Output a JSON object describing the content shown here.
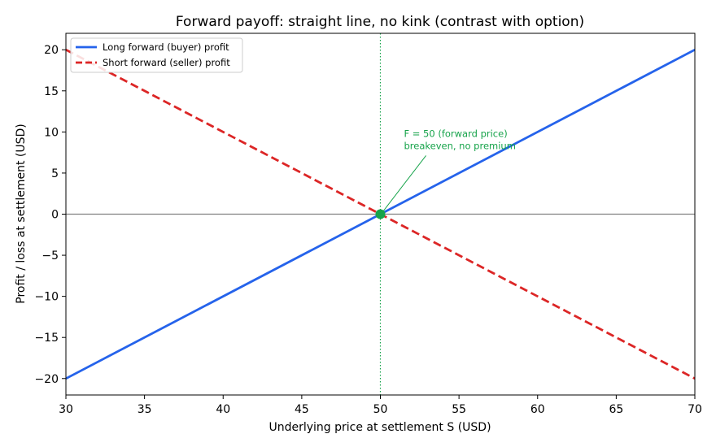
{
  "chart_data": {
    "type": "line",
    "title": "Forward payoff: straight line, no kink (contrast with option)",
    "xlabel": "Underlying price at settlement S (USD)",
    "ylabel": "Profit / loss at settlement (USD)",
    "xlim": [
      30,
      70
    ],
    "ylim": [
      -22,
      22
    ],
    "xticks": [
      30,
      35,
      40,
      45,
      50,
      55,
      60,
      65,
      70
    ],
    "yticks": [
      -20,
      -15,
      -10,
      -5,
      0,
      5,
      10,
      15,
      20
    ],
    "xtick_labels": [
      "30",
      "35",
      "40",
      "45",
      "50",
      "55",
      "60",
      "65",
      "70"
    ],
    "ytick_labels": [
      "−20",
      "−15",
      "−10",
      "−5",
      "0",
      "5",
      "10",
      "15",
      "20"
    ],
    "grid": false,
    "legend_position": "top-left",
    "series": [
      {
        "name": "Long forward (buyer) profit",
        "style": "solid",
        "color": "#2563eb",
        "x": [
          30,
          70
        ],
        "y": [
          -20,
          20
        ]
      },
      {
        "name": "Short forward (seller) profit",
        "style": "dashed",
        "color": "#dc2626",
        "x": [
          30,
          70
        ],
        "y": [
          20,
          -20
        ]
      }
    ],
    "zero_line": {
      "y": 0,
      "color": "#808080"
    },
    "reference_line": {
      "x": 50,
      "style": "dotted",
      "color": "#16a34a"
    },
    "marker": {
      "x": 50,
      "y": 0,
      "color": "#16a34a"
    },
    "annotation": {
      "lines": [
        "F = 50 (forward price)",
        "breakeven, no premium"
      ],
      "point": {
        "x": 50,
        "y": 0
      },
      "text_at": {
        "x": 51.5,
        "y": 9.8
      },
      "color": "#16a34a"
    }
  }
}
